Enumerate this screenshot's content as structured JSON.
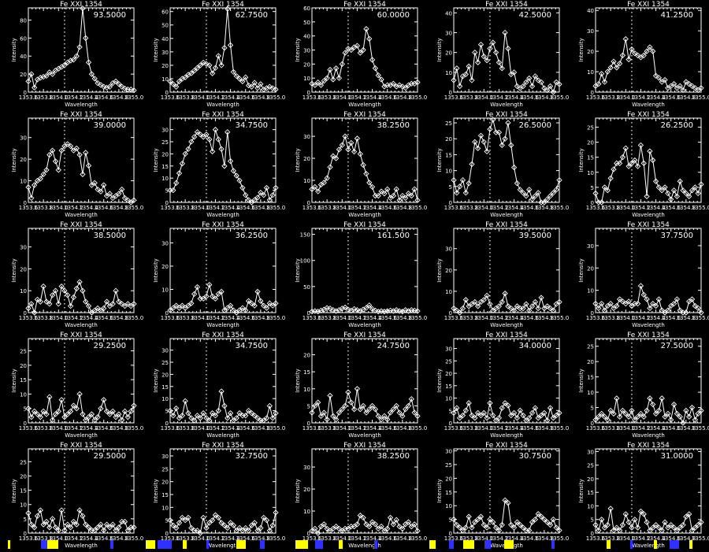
{
  "colors": {
    "background": "#000000",
    "foreground": "#ffffff",
    "artifact_yellow": "#ffff00",
    "artifact_blue": "#3030ff"
  },
  "wavelength_grid": [
    1353.6,
    1353.64,
    1353.68,
    1353.72,
    1353.76,
    1353.8,
    1353.84,
    1353.88,
    1353.92,
    1353.96,
    1354.0,
    1354.04,
    1354.08,
    1354.12,
    1354.16,
    1354.2,
    1354.24,
    1354.28,
    1354.32,
    1354.36,
    1354.4,
    1354.44,
    1354.48,
    1354.52,
    1354.56,
    1354.6,
    1354.64,
    1354.68,
    1354.72,
    1354.76,
    1354.8,
    1354.84,
    1354.88,
    1354.92,
    1354.96,
    1355.0
  ],
  "axes": {
    "xlabel": "Wavelength",
    "ylabel": "Intensity",
    "xlim": [
      1353.6,
      1355.0
    ],
    "xticks": [
      "1353.6",
      "1353.8",
      "1354.0",
      "1354.2",
      "1354.4",
      "1354.6",
      "1354.8",
      "1355.0"
    ],
    "xtick_values": [
      1353.6,
      1353.8,
      1354.0,
      1354.2,
      1354.4,
      1354.6,
      1354.8,
      1355.0
    ],
    "reference_line": 1354.08,
    "marker": "diamond"
  },
  "chart_data": [
    {
      "type": "line",
      "title": "Fe XXI 1354",
      "annotation": "93.5000",
      "ylim": [
        0,
        93.5
      ],
      "yticks": [
        0,
        20,
        40,
        60,
        80
      ],
      "values": [
        12,
        20,
        5,
        14,
        16,
        17,
        18,
        22,
        20,
        24,
        26,
        28,
        30,
        33,
        35,
        36,
        40,
        50,
        93,
        60,
        33,
        20,
        15,
        10,
        8,
        6,
        5,
        6,
        10,
        12,
        9,
        6,
        4,
        3,
        3,
        2
      ]
    },
    {
      "type": "line",
      "title": "Fe XXI 1354",
      "annotation": "62.7500",
      "ylim": [
        0,
        62.75
      ],
      "yticks": [
        0,
        10,
        20,
        30,
        40,
        50,
        60
      ],
      "values": [
        8,
        6,
        4,
        8,
        10,
        11,
        13,
        14,
        16,
        18,
        20,
        22,
        21,
        20,
        14,
        18,
        27,
        20,
        33,
        62,
        35,
        15,
        12,
        10,
        8,
        11,
        5,
        4,
        7,
        3,
        6,
        2,
        3,
        4,
        3,
        2
      ]
    },
    {
      "type": "line",
      "title": "Fe XXI 1354",
      "annotation": "60.0000",
      "ylim": [
        0,
        60
      ],
      "yticks": [
        0,
        10,
        20,
        30,
        40,
        50,
        60
      ],
      "values": [
        6,
        5,
        7,
        5,
        8,
        10,
        16,
        9,
        17,
        10,
        20,
        28,
        31,
        30,
        32,
        33,
        28,
        30,
        45,
        38,
        23,
        17,
        12,
        9,
        4,
        5,
        5,
        6,
        4,
        5,
        4,
        3,
        5,
        6,
        6,
        7
      ]
    },
    {
      "type": "line",
      "title": "Fe XXI 1354",
      "annotation": "42.5000",
      "ylim": [
        0,
        42.5
      ],
      "yticks": [
        0,
        10,
        20,
        30,
        40
      ],
      "values": [
        6,
        12,
        3,
        8,
        9,
        13,
        6,
        20,
        15,
        24,
        18,
        16,
        22,
        25,
        20,
        15,
        12,
        30,
        22,
        9,
        10,
        3,
        2,
        3,
        5,
        7,
        3,
        8,
        6,
        5,
        2,
        1,
        3,
        0,
        5,
        4
      ]
    },
    {
      "type": "line",
      "title": "Fe XXI 1354",
      "annotation": "41.2500",
      "ylim": [
        0,
        41.25
      ],
      "yticks": [
        0,
        10,
        20,
        30,
        40
      ],
      "values": [
        3,
        4,
        9,
        5,
        10,
        12,
        15,
        12,
        14,
        18,
        26,
        16,
        21,
        19,
        18,
        17,
        18,
        20,
        22,
        20,
        8,
        7,
        5,
        6,
        2,
        3,
        4,
        2,
        3,
        1,
        5,
        4,
        3,
        2,
        1,
        2
      ]
    },
    {
      "type": "line",
      "title": "Fe XXI 1354",
      "annotation": "39.0000",
      "ylim": [
        0,
        39
      ],
      "yticks": [
        0,
        10,
        20,
        30
      ],
      "values": [
        7,
        2,
        8,
        10,
        11,
        13,
        15,
        22,
        24,
        19,
        15,
        24,
        26,
        27,
        26,
        24,
        25,
        22,
        13,
        23,
        17,
        8,
        9,
        6,
        5,
        8,
        3,
        4,
        2,
        3,
        4,
        6,
        2,
        1,
        0,
        1
      ]
    },
    {
      "type": "line",
      "title": "Fe XXI 1354",
      "annotation": "34.7500",
      "ylim": [
        0,
        34.75
      ],
      "yticks": [
        0,
        5,
        10,
        15,
        20,
        25,
        30
      ],
      "values": [
        5,
        5,
        8,
        12,
        16,
        20,
        22,
        25,
        27,
        29,
        28,
        27,
        28,
        26,
        21,
        30,
        26,
        22,
        15,
        29,
        17,
        13,
        11,
        9,
        6,
        3,
        1,
        0,
        1,
        2,
        4,
        3,
        6,
        1,
        3,
        6
      ]
    },
    {
      "type": "line",
      "title": "Fe XXI 1354",
      "annotation": "38.2500",
      "ylim": [
        0,
        38.25
      ],
      "yticks": [
        0,
        10,
        20,
        30
      ],
      "values": [
        6,
        7,
        5,
        8,
        9,
        11,
        16,
        21,
        20,
        24,
        26,
        30,
        24,
        27,
        23,
        29,
        22,
        17,
        13,
        9,
        7,
        3,
        3,
        5,
        4,
        6,
        2,
        3,
        6,
        1,
        3,
        2,
        4,
        3,
        6,
        1
      ]
    },
    {
      "type": "line",
      "title": "Fe XXI 1354",
      "annotation": "26.5000",
      "ylim": [
        0,
        26.5
      ],
      "yticks": [
        0,
        5,
        10,
        15,
        20,
        25
      ],
      "values": [
        7,
        3,
        5,
        7,
        3,
        6,
        12,
        19,
        17,
        21,
        19,
        16,
        23,
        26,
        22,
        22,
        18,
        20,
        25,
        18,
        11,
        6,
        4,
        3,
        2,
        4,
        1,
        2,
        3,
        0,
        0,
        1,
        2,
        3,
        4,
        7
      ]
    },
    {
      "type": "line",
      "title": "Fe XXI 1354",
      "annotation": "26.2500",
      "ylim": [
        0,
        28
      ],
      "yticks": [
        0,
        5,
        10,
        15,
        20,
        25
      ],
      "values": [
        3,
        0,
        0,
        5,
        4,
        8,
        11,
        13,
        13,
        15,
        18,
        12,
        13,
        14,
        12,
        19,
        13,
        2,
        17,
        14,
        7,
        5,
        4,
        5,
        3,
        1,
        4,
        2,
        7,
        4,
        3,
        2,
        4,
        5,
        3,
        6
      ]
    },
    {
      "type": "line",
      "title": "Fe XXI 1354",
      "annotation": "38.5000",
      "ylim": [
        0,
        38.5
      ],
      "yticks": [
        0,
        10,
        20,
        30
      ],
      "values": [
        2,
        4,
        0,
        6,
        5,
        12,
        5,
        4,
        8,
        10,
        4,
        12,
        10,
        8,
        3,
        7,
        11,
        14,
        10,
        5,
        3,
        0,
        1,
        2,
        1,
        2,
        5,
        3,
        4,
        10,
        5,
        4,
        3,
        4,
        3,
        4
      ]
    },
    {
      "type": "line",
      "title": "Fe XXI 1354",
      "annotation": "36.2500",
      "ylim": [
        0,
        36.25
      ],
      "yticks": [
        0,
        10,
        20,
        30
      ],
      "values": [
        1,
        2,
        3,
        2,
        3,
        2,
        3,
        4,
        8,
        11,
        6,
        6,
        7,
        12,
        7,
        6,
        8,
        9,
        1,
        2,
        3,
        1,
        0,
        1,
        2,
        1,
        5,
        4,
        3,
        9,
        5,
        3,
        2,
        4,
        3,
        4
      ]
    },
    {
      "type": "line",
      "title": "Fe XXI 1354",
      "annotation": "161.500",
      "ylim": [
        0,
        161.5
      ],
      "yticks": [
        0,
        50,
        100,
        150
      ],
      "values": [
        2,
        3,
        2,
        4,
        6,
        9,
        8,
        5,
        3,
        5,
        8,
        10,
        6,
        4,
        7,
        5,
        3,
        6,
        9,
        14,
        7,
        4,
        2,
        3,
        2,
        3,
        4,
        3,
        5,
        3,
        2,
        5,
        3,
        5,
        4,
        3
      ]
    },
    {
      "type": "line",
      "title": "Fe XXI 1354",
      "annotation": "39.5000",
      "ylim": [
        0,
        39.5
      ],
      "yticks": [
        0,
        10,
        20,
        30
      ],
      "values": [
        2,
        1,
        0,
        2,
        6,
        3,
        4,
        5,
        3,
        5,
        6,
        8,
        4,
        1,
        2,
        3,
        5,
        9,
        3,
        2,
        1,
        3,
        2,
        2,
        4,
        1,
        3,
        5,
        2,
        7,
        2,
        3,
        2,
        1,
        4,
        5
      ]
    },
    {
      "type": "line",
      "title": "Fe XXI 1354",
      "annotation": "37.7500",
      "ylim": [
        0,
        37.75
      ],
      "yticks": [
        0,
        10,
        20,
        30
      ],
      "values": [
        4,
        2,
        4,
        1,
        3,
        4,
        2,
        3,
        6,
        5,
        4,
        5,
        3,
        4,
        4,
        12,
        8,
        6,
        2,
        4,
        3,
        6,
        1,
        0,
        1,
        3,
        4,
        6,
        1,
        0,
        0,
        5,
        6,
        3,
        2,
        0
      ]
    },
    {
      "type": "line",
      "title": "Fe XXI 1354",
      "annotation": "29.2500",
      "ylim": [
        0,
        29.25
      ],
      "yticks": [
        0,
        5,
        10,
        15,
        20,
        25
      ],
      "values": [
        5,
        2,
        4,
        3,
        2,
        4,
        3,
        9,
        1,
        3,
        4,
        8,
        2,
        3,
        4,
        6,
        5,
        10,
        3,
        1,
        2,
        3,
        1,
        2,
        5,
        8,
        4,
        3,
        4,
        2,
        3,
        1,
        4,
        2,
        4,
        6
      ]
    },
    {
      "type": "line",
      "title": "Fe XXI 1354",
      "annotation": "34.7500",
      "ylim": [
        0,
        34.75
      ],
      "yticks": [
        0,
        5,
        10,
        15,
        20,
        25,
        30
      ],
      "values": [
        5,
        3,
        6,
        2,
        3,
        9,
        4,
        2,
        1,
        3,
        2,
        4,
        2,
        1,
        4,
        3,
        5,
        13,
        7,
        2,
        4,
        1,
        2,
        4,
        3,
        3,
        5,
        4,
        3,
        2,
        1,
        1,
        2,
        7,
        2,
        4
      ]
    },
    {
      "type": "line",
      "title": "Fe XXI 1354",
      "annotation": "24.7500",
      "ylim": [
        0,
        24.75
      ],
      "yticks": [
        0,
        5,
        10,
        15,
        20
      ],
      "values": [
        3,
        5,
        6,
        2,
        3,
        1,
        8,
        2,
        1,
        3,
        4,
        5,
        9,
        6,
        4,
        10,
        4,
        5,
        3,
        4,
        5,
        4,
        2,
        1,
        2,
        1,
        3,
        4,
        5,
        3,
        2,
        4,
        5,
        7,
        3,
        2
      ]
    },
    {
      "type": "line",
      "title": "Fe XXI 1354",
      "annotation": "34.0000",
      "ylim": [
        0,
        34
      ],
      "yticks": [
        0,
        5,
        10,
        15,
        20,
        25,
        30
      ],
      "values": [
        4,
        6,
        2,
        3,
        5,
        8,
        3,
        2,
        4,
        3,
        4,
        2,
        8,
        3,
        1,
        2,
        6,
        8,
        7,
        3,
        4,
        2,
        5,
        3,
        1,
        2,
        4,
        6,
        2,
        3,
        4,
        1,
        6,
        2,
        3,
        4
      ]
    },
    {
      "type": "line",
      "title": "Fe XXI 1354",
      "annotation": "27.5000",
      "ylim": [
        0,
        27.5
      ],
      "yticks": [
        0,
        5,
        10,
        15,
        20,
        25
      ],
      "values": [
        1,
        2,
        3,
        2,
        1,
        4,
        3,
        8,
        2,
        4,
        3,
        2,
        4,
        1,
        2,
        3,
        2,
        4,
        8,
        6,
        3,
        4,
        8,
        2,
        3,
        1,
        6,
        3,
        2,
        0,
        4,
        2,
        5,
        1,
        3,
        4
      ]
    },
    {
      "type": "line",
      "title": "Fe XXI 1354",
      "annotation": "29.5000",
      "ylim": [
        0,
        29.5
      ],
      "yticks": [
        0,
        5,
        10,
        15,
        20,
        25
      ],
      "values": [
        7,
        3,
        2,
        6,
        8,
        3,
        4,
        2,
        5,
        2,
        1,
        8,
        1,
        3,
        2,
        4,
        3,
        8,
        6,
        3,
        2,
        1,
        1,
        2,
        3,
        1,
        3,
        2,
        3,
        1,
        2,
        4,
        4,
        1,
        2,
        2
      ]
    },
    {
      "type": "line",
      "title": "Fe XXI 1354",
      "annotation": "32.7500",
      "ylim": [
        0,
        32.75
      ],
      "yticks": [
        0,
        5,
        10,
        15,
        20,
        25,
        30
      ],
      "values": [
        5,
        3,
        2,
        4,
        6,
        5,
        6,
        2,
        1,
        1,
        0,
        6,
        2,
        4,
        5,
        7,
        6,
        4,
        3,
        2,
        4,
        3,
        1,
        2,
        1,
        2,
        1,
        3,
        4,
        1,
        2,
        6,
        5,
        1,
        3,
        8
      ]
    },
    {
      "type": "line",
      "title": "Fe XXI 1354",
      "annotation": "38.2500",
      "ylim": [
        0,
        38.25
      ],
      "yticks": [
        0,
        10,
        20,
        30
      ],
      "values": [
        1,
        2,
        0,
        3,
        4,
        2,
        1,
        2,
        3,
        2,
        1,
        2,
        2,
        3,
        3,
        4,
        8,
        7,
        4,
        3,
        5,
        4,
        2,
        3,
        1,
        2,
        7,
        4,
        6,
        3,
        2,
        4,
        5,
        3,
        4,
        1
      ]
    },
    {
      "type": "line",
      "title": "Fe XXI 1354",
      "annotation": "30.7500",
      "ylim": [
        0,
        30.75
      ],
      "yticks": [
        0,
        5,
        10,
        15,
        20,
        25,
        30
      ],
      "values": [
        5,
        3,
        2,
        1,
        2,
        6,
        2,
        4,
        5,
        6,
        3,
        2,
        5,
        4,
        2,
        1,
        3,
        12,
        11,
        3,
        2,
        4,
        3,
        2,
        1,
        1,
        4,
        5,
        7,
        6,
        5,
        4,
        3,
        5,
        2,
        1
      ]
    },
    {
      "type": "line",
      "title": "Fe XXI 1354",
      "annotation": "31.0000",
      "ylim": [
        0,
        31
      ],
      "yticks": [
        0,
        5,
        10,
        15,
        20,
        25,
        30
      ],
      "values": [
        3,
        1,
        5,
        2,
        3,
        9,
        1,
        2,
        1,
        3,
        7,
        4,
        2,
        5,
        2,
        8,
        7,
        4,
        1,
        2,
        3,
        2,
        1,
        4,
        2,
        3,
        2,
        1,
        2,
        3,
        6,
        7,
        1,
        2,
        3,
        4
      ]
    }
  ]
}
